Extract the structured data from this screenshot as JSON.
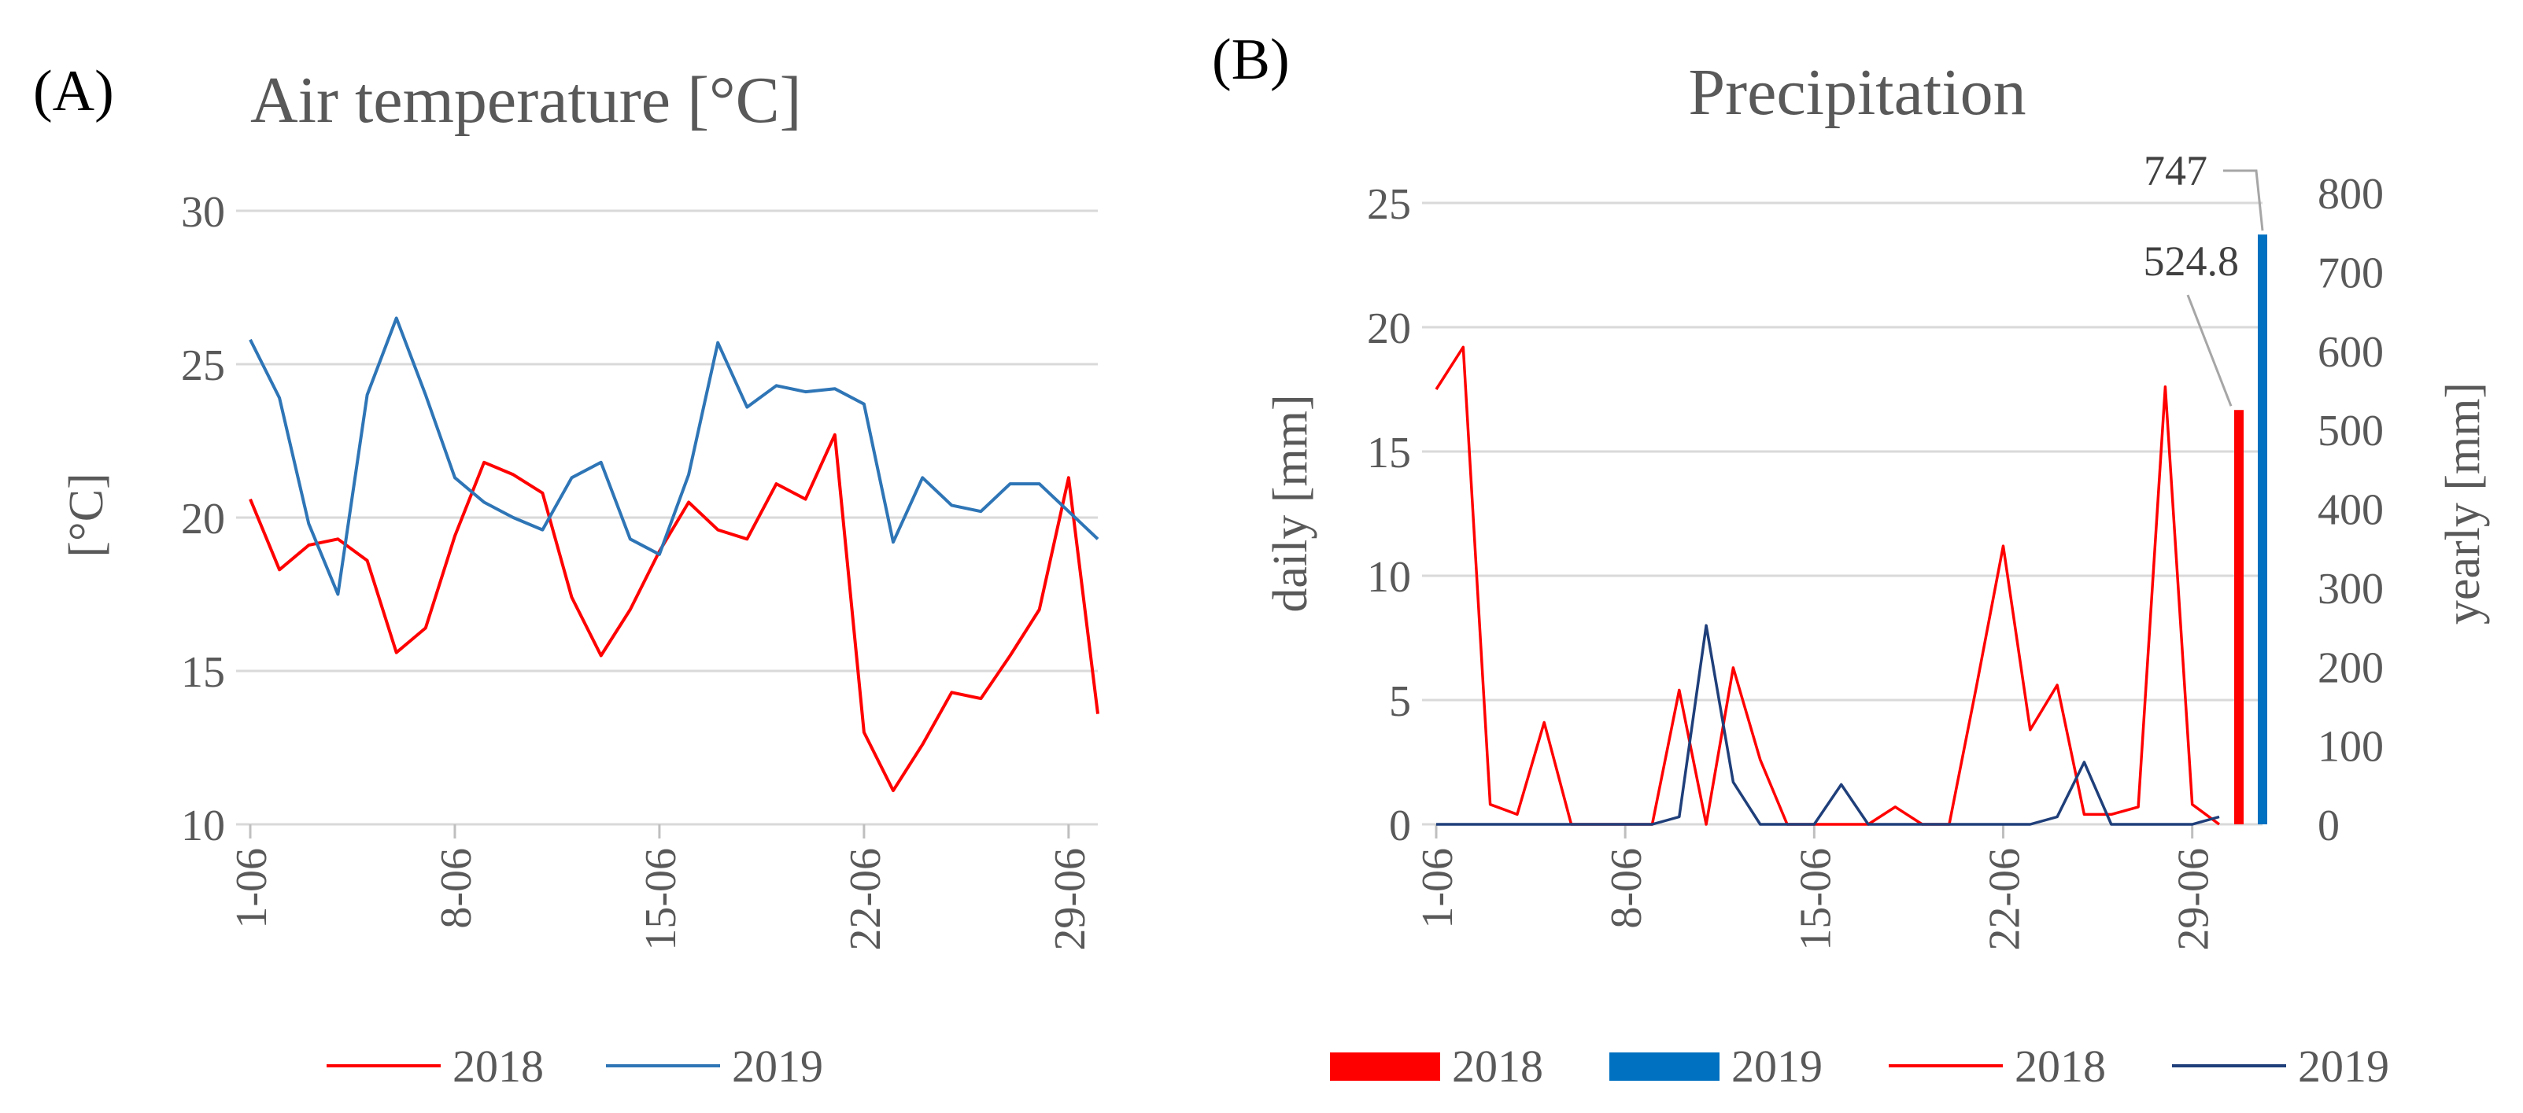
{
  "chart_data": [
    {
      "type": "line",
      "panel": "(A)",
      "title": "Air temperature [°C]",
      "ylabel": "[°C]",
      "ylim": [
        10,
        30
      ],
      "yticks": [
        10,
        15,
        20,
        25,
        30
      ],
      "x": [
        "1-06",
        "2-06",
        "3-06",
        "4-06",
        "5-06",
        "6-06",
        "7-06",
        "8-06",
        "9-06",
        "10-06",
        "11-06",
        "12-06",
        "13-06",
        "14-06",
        "15-06",
        "16-06",
        "17-06",
        "18-06",
        "19-06",
        "20-06",
        "21-06",
        "22-06",
        "23-06",
        "24-06",
        "25-06",
        "26-06",
        "27-06",
        "28-06",
        "29-06",
        "30-06"
      ],
      "xticks": [
        "1-06",
        "8-06",
        "15-06",
        "22-06",
        "29-06"
      ],
      "grid": true,
      "legend": "bottom",
      "series": [
        {
          "name": "2018",
          "color": "#ff0000",
          "values": [
            20.6,
            18.3,
            19.1,
            19.3,
            18.6,
            15.6,
            16.4,
            19.4,
            21.8,
            21.4,
            20.8,
            17.4,
            15.5,
            17.0,
            18.9,
            20.5,
            19.6,
            19.3,
            21.1,
            20.6,
            22.7,
            13.0,
            11.1,
            12.6,
            14.3,
            14.1,
            15.5,
            17.0,
            21.3,
            13.6
          ]
        },
        {
          "name": "2019",
          "color": "#2e75b6",
          "values": [
            25.8,
            23.9,
            19.8,
            17.5,
            24.0,
            26.5,
            24.0,
            21.3,
            20.5,
            20.0,
            19.6,
            21.3,
            21.8,
            19.3,
            18.8,
            21.4,
            25.7,
            23.6,
            24.3,
            24.1,
            24.2,
            23.7,
            19.2,
            21.3,
            20.4,
            20.2,
            21.1,
            21.1,
            20.2,
            19.3
          ]
        }
      ]
    },
    {
      "type": "line",
      "panel": "(B)",
      "title": "Precipitation",
      "ylabel": "daily [mm]",
      "ylabel_right": "yearly [mm]",
      "ylim": [
        0,
        25
      ],
      "yticks": [
        0,
        5,
        10,
        15,
        20,
        25
      ],
      "ylim_right": [
        0,
        800
      ],
      "yticks_right": [
        0,
        100,
        200,
        300,
        400,
        500,
        600,
        700,
        800
      ],
      "x": [
        "1-06",
        "2-06",
        "3-06",
        "4-06",
        "5-06",
        "6-06",
        "7-06",
        "8-06",
        "9-06",
        "10-06",
        "11-06",
        "12-06",
        "13-06",
        "14-06",
        "15-06",
        "16-06",
        "17-06",
        "18-06",
        "19-06",
        "20-06",
        "21-06",
        "22-06",
        "23-06",
        "24-06",
        "25-06",
        "26-06",
        "27-06",
        "28-06",
        "29-06",
        "30-06"
      ],
      "xticks": [
        "1-06",
        "8-06",
        "15-06",
        "22-06",
        "29-06"
      ],
      "grid": true,
      "legend": "bottom",
      "series": [
        {
          "name": "2018",
          "kind": "line",
          "axis": "left",
          "color": "#ff0000",
          "values": [
            17.5,
            19.2,
            0.8,
            0.4,
            4.1,
            0,
            0,
            0,
            0,
            5.4,
            0,
            6.3,
            2.6,
            0,
            0,
            0,
            0,
            0.7,
            0,
            0,
            5.5,
            11.2,
            3.8,
            5.6,
            0.4,
            0.4,
            0.7,
            17.6,
            0.8,
            0
          ]
        },
        {
          "name": "2019",
          "kind": "line",
          "axis": "left",
          "color": "#1f3f7a",
          "values": [
            0,
            0,
            0,
            0,
            0,
            0,
            0,
            0,
            0,
            0.3,
            8.0,
            1.7,
            0,
            0,
            0,
            1.6,
            0,
            0,
            0,
            0,
            0,
            0,
            0,
            0.3,
            2.5,
            0,
            0,
            0,
            0,
            0.3
          ]
        },
        {
          "name": "2018",
          "kind": "bar",
          "axis": "right",
          "color": "#ff0000",
          "value": 524.8,
          "label": "524.8"
        },
        {
          "name": "2019",
          "kind": "bar",
          "axis": "right",
          "color": "#0070c0",
          "value": 747,
          "label": "747"
        }
      ]
    }
  ]
}
